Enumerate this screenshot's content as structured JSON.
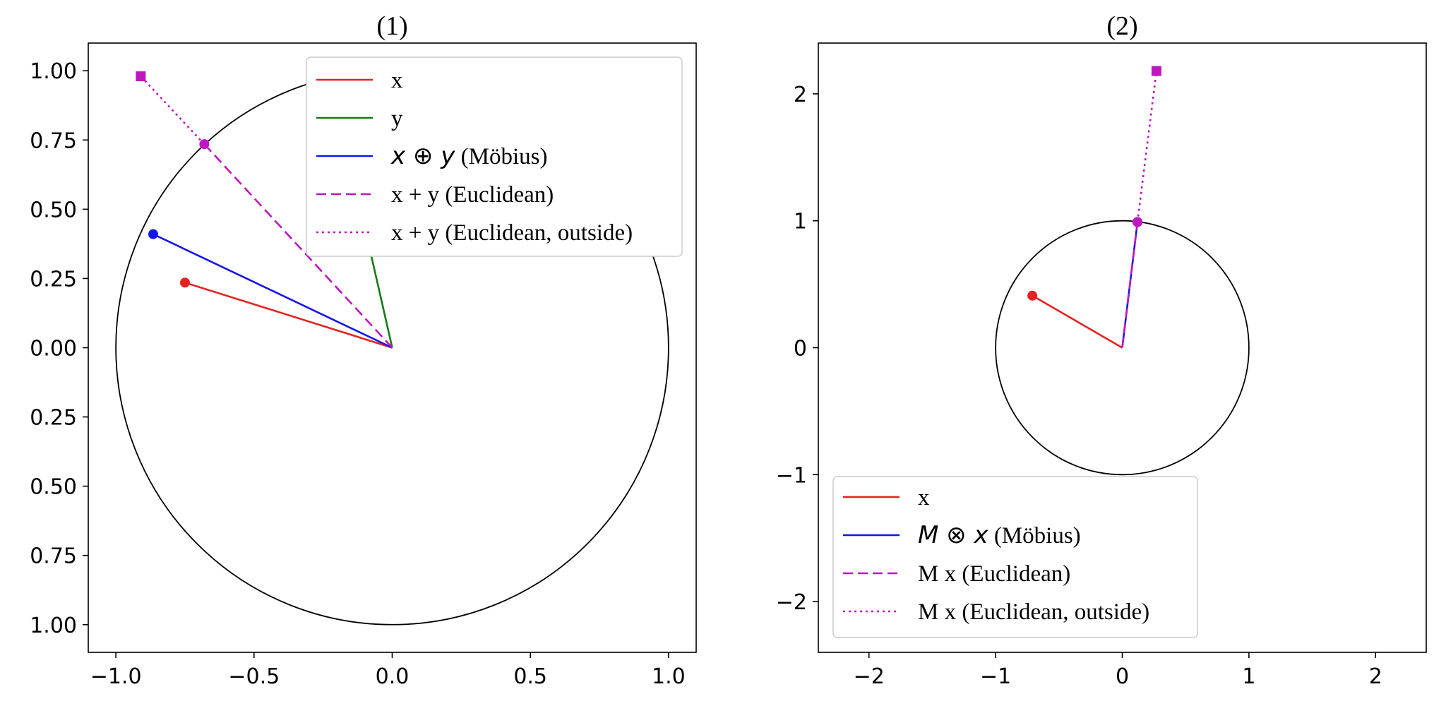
{
  "chart_data": [
    {
      "type": "line",
      "title": "(1)",
      "xlim": [
        -1.1,
        1.1
      ],
      "ylim": [
        -1.1,
        1.1
      ],
      "y_inverted": true,
      "xticks": [
        -1.0,
        -0.5,
        0.0,
        0.5,
        1.0
      ],
      "xtick_labels": [
        "−1.0",
        "−0.5",
        "0.0",
        "0.5",
        "1.0"
      ],
      "yticks": [
        1.0,
        0.75,
        0.5,
        0.25,
        0.0,
        -0.25,
        -0.5,
        -0.75,
        -1.0
      ],
      "ytick_labels": [
        "1.00",
        "0.75",
        "0.50",
        "0.25",
        "0.00",
        "0.25",
        "0.50",
        "0.75",
        "1.00"
      ],
      "grid": false,
      "unit_circle": true,
      "legend_location": "upper right",
      "series": [
        {
          "name": "x",
          "color": "#e8211f",
          "style": "solid",
          "marker": "circle",
          "x": [
            0,
            -0.75
          ],
          "y": [
            0,
            -0.235
          ]
        },
        {
          "name": "y",
          "color": "#157a15",
          "style": "solid",
          "marker": "circle",
          "x": [
            0,
            -0.17
          ],
          "y": [
            0,
            -0.745
          ]
        },
        {
          "name_math": "x ⊕ y",
          "name_text": " (Möbius)",
          "color": "#1515e8",
          "style": "solid",
          "marker": "circle",
          "x": [
            0,
            -0.865
          ],
          "y": [
            0,
            -0.41
          ]
        },
        {
          "name": "x + y (Euclidean)",
          "color": "#bf16bf",
          "style": "dashed",
          "marker": "circle",
          "x": [
            0,
            -0.68
          ],
          "y": [
            0,
            -0.735
          ]
        },
        {
          "name": "x + y (Euclidean, outside)",
          "color": "#bf16bf",
          "style": "dotted",
          "marker": "square",
          "x": [
            -0.68,
            -0.91
          ],
          "y": [
            -0.735,
            -0.98
          ]
        }
      ]
    },
    {
      "type": "line",
      "title": "(2)",
      "xlim": [
        -2.4,
        2.4
      ],
      "ylim": [
        -2.4,
        2.4
      ],
      "xticks": [
        -2,
        -1,
        0,
        1,
        2
      ],
      "xtick_labels": [
        "−2",
        "−1",
        "0",
        "1",
        "2"
      ],
      "yticks": [
        2,
        1,
        0,
        -1,
        -2
      ],
      "ytick_labels": [
        "2",
        "1",
        "0",
        "−1",
        "−2"
      ],
      "grid": false,
      "unit_circle": true,
      "legend_location": "lower left",
      "series": [
        {
          "name": "x",
          "color": "#e8211f",
          "style": "solid",
          "marker": "circle",
          "x": [
            0,
            -0.71
          ],
          "y": [
            0,
            0.41
          ]
        },
        {
          "name_math": "M ⊗ x",
          "name_text": " (Möbius)",
          "color": "#1515e8",
          "style": "solid",
          "marker": "circle",
          "x": [
            0,
            0.12
          ],
          "y": [
            0,
            0.99
          ]
        },
        {
          "name": "M x (Euclidean)",
          "color": "#bf16bf",
          "style": "dashed",
          "marker": "circle",
          "x": [
            0,
            0.12
          ],
          "y": [
            0,
            0.99
          ]
        },
        {
          "name": "M x (Euclidean, outside)",
          "color": "#bf16bf",
          "style": "dotted",
          "marker": "square",
          "x": [
            0.12,
            0.27
          ],
          "y": [
            0.99,
            2.18
          ]
        }
      ]
    }
  ]
}
